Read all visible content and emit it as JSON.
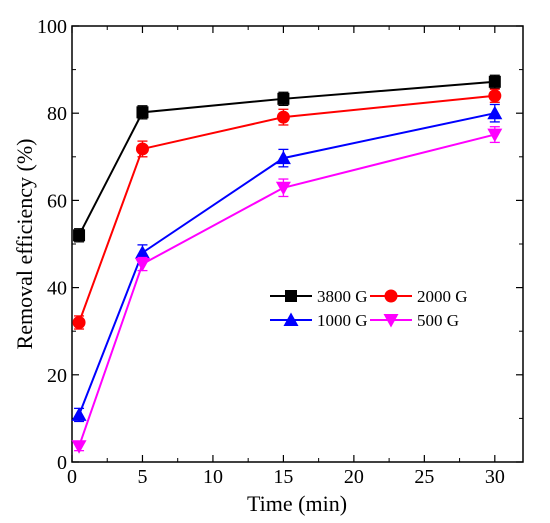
{
  "chart_data": {
    "type": "line",
    "title": "",
    "xlabel": "Time (min)",
    "ylabel": "Removal efficiency (%)",
    "xlim": [
      0,
      32
    ],
    "ylim": [
      0,
      100
    ],
    "xticks": [
      0,
      5,
      10,
      15,
      20,
      25,
      30
    ],
    "yticks": [
      0,
      20,
      40,
      60,
      80,
      100
    ],
    "x": [
      0.5,
      5,
      15,
      30
    ],
    "legend_position": "center-right",
    "grid": false,
    "series": [
      {
        "name": "3800 G",
        "color": "#000000",
        "marker": "square",
        "values": [
          52,
          80.2,
          83.3,
          87.2
        ],
        "errors": [
          1.5,
          1.5,
          1.5,
          1.5
        ]
      },
      {
        "name": "2000 G",
        "color": "#ff0000",
        "marker": "circle",
        "values": [
          32,
          71.8,
          79.1,
          84
        ],
        "errors": [
          1.5,
          1.8,
          1.8,
          1.5
        ]
      },
      {
        "name": "1000 G",
        "color": "#0000ff",
        "marker": "triangle-up",
        "values": [
          10.8,
          48,
          69.7,
          80
        ],
        "errors": [
          1.5,
          1.8,
          2,
          2
        ]
      },
      {
        "name": "500 G",
        "color": "#ff00ff",
        "marker": "triangle-down",
        "values": [
          3.6,
          45.4,
          62.9,
          75.1
        ],
        "errors": [
          1,
          1.5,
          2,
          1.8
        ]
      }
    ]
  }
}
